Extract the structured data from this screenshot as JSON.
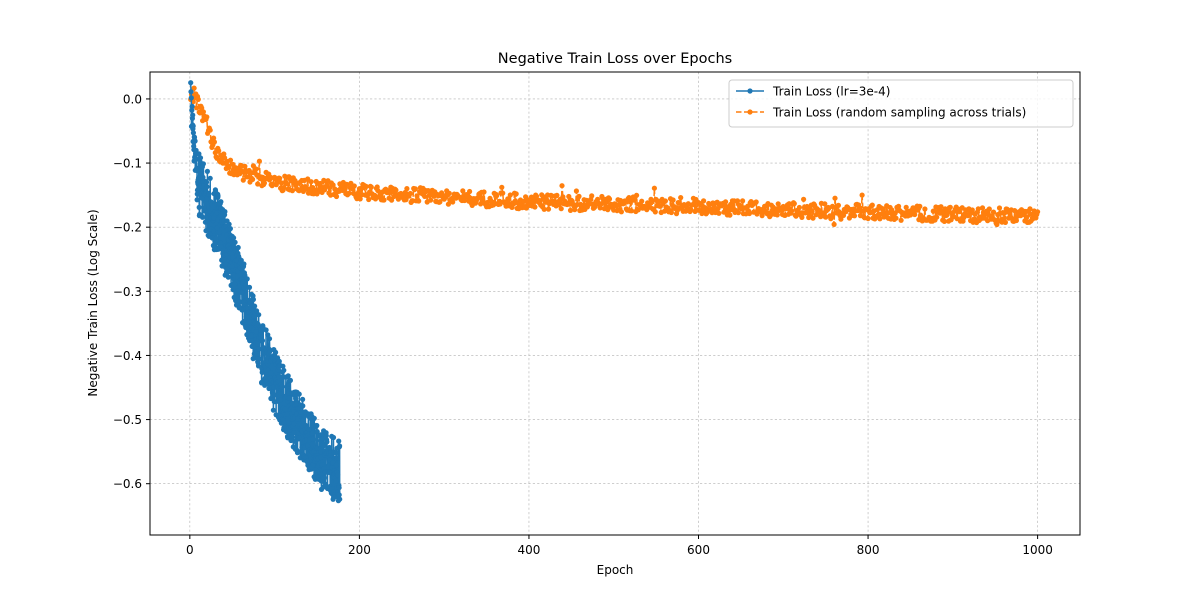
{
  "chart_data": {
    "type": "line",
    "title": "Negative Train Loss over Epochs",
    "xlabel": "Epoch",
    "ylabel": "Negative Train Loss (Log Scale)",
    "xlim": [
      -47,
      1050
    ],
    "ylim": [
      -0.68,
      0.042
    ],
    "xticks": [
      0,
      200,
      400,
      600,
      800,
      1000
    ],
    "xtick_labels": [
      "0",
      "200",
      "400",
      "600",
      "800",
      "1000"
    ],
    "yticks": [
      0.0,
      -0.1,
      -0.2,
      -0.3,
      -0.4,
      -0.5,
      -0.6
    ],
    "ytick_labels": [
      "0.0",
      "−0.1",
      "−0.2",
      "−0.3",
      "−0.4",
      "−0.5",
      "−0.6"
    ],
    "grid": true,
    "legend_position": "top-right",
    "series": [
      {
        "name": "Train Loss (lr=3e-4)",
        "color": "#1f77b4",
        "line_style": "solid",
        "marker": "circle",
        "x_range": [
          1,
          176
        ],
        "approx_trend": {
          "x": [
            1,
            3,
            10,
            20,
            40,
            60,
            80,
            100,
            120,
            140,
            160,
            176
          ],
          "y": [
            0.0,
            -0.05,
            -0.13,
            -0.16,
            -0.22,
            -0.29,
            -0.38,
            -0.44,
            -0.49,
            -0.53,
            -0.57,
            -0.58
          ]
        },
        "spread": 0.05
      },
      {
        "name": "Train Loss (random sampling across trials)",
        "color": "#ff7f0e",
        "line_style": "dashed",
        "marker": "circle",
        "x_range": [
          1,
          1000
        ],
        "approx_trend": {
          "x": [
            1,
            5,
            10,
            20,
            30,
            50,
            100,
            200,
            400,
            600,
            800,
            1000
          ],
          "y": [
            0.005,
            0.005,
            -0.01,
            -0.04,
            -0.08,
            -0.11,
            -0.13,
            -0.145,
            -0.16,
            -0.168,
            -0.177,
            -0.183
          ]
        },
        "spread": 0.012
      }
    ]
  }
}
